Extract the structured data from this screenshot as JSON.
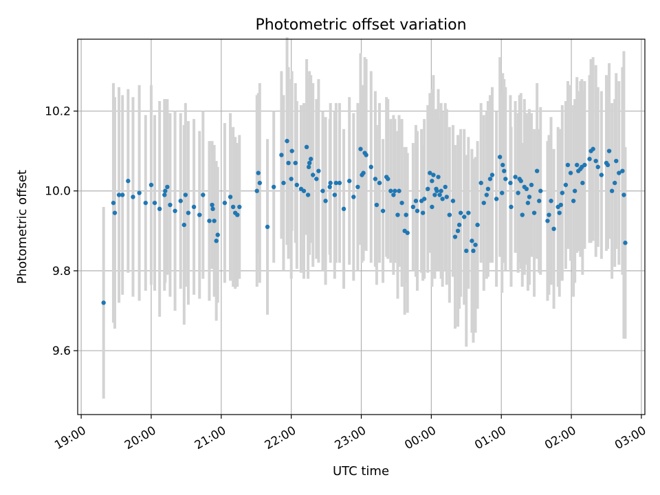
{
  "chart_data": {
    "type": "scatter",
    "title": "Photometric offset variation",
    "xlabel": "UTC time",
    "ylabel": "Photometric offset",
    "x_unit": "hours after 19:00 UTC",
    "xlim": [
      -0.05,
      8.05
    ],
    "ylim": [
      9.44,
      10.38
    ],
    "x_ticks": [
      {
        "value": 0,
        "label": "19:00"
      },
      {
        "value": 1,
        "label": "20:00"
      },
      {
        "value": 2,
        "label": "21:00"
      },
      {
        "value": 3,
        "label": "22:00"
      },
      {
        "value": 4,
        "label": "23:00"
      },
      {
        "value": 5,
        "label": "00:00"
      },
      {
        "value": 6,
        "label": "01:00"
      },
      {
        "value": 7,
        "label": "02:00"
      },
      {
        "value": 8,
        "label": "03:00"
      }
    ],
    "y_ticks": [
      {
        "value": 9.6,
        "label": "9.6"
      },
      {
        "value": 9.8,
        "label": "9.8"
      },
      {
        "value": 10.0,
        "label": "10.0"
      },
      {
        "value": 10.2,
        "label": "10.2"
      }
    ],
    "grid": true,
    "colors": {
      "points": "#1f77b4",
      "errorbars": "#d3d3d3",
      "grid": "#b0b0b0"
    },
    "series": [
      {
        "points": [
          [
            0.32,
            9.72,
            0.24
          ],
          [
            0.46,
            9.97,
            0.3
          ],
          [
            0.48,
            9.945,
            0.29
          ],
          [
            0.54,
            9.99,
            0.27
          ],
          [
            0.67,
            10.025,
            0.23
          ],
          [
            0.83,
            9.995,
            0.27
          ],
          [
            1.0,
            10.015,
            0.25
          ],
          [
            1.12,
            9.955,
            0.27
          ],
          [
            1.19,
            9.99,
            0.24
          ],
          [
            1.2,
            10.0,
            0.23
          ],
          [
            1.23,
            10.01,
            0.22
          ],
          [
            1.34,
            9.95,
            0.25
          ],
          [
            1.47,
            9.915,
            0.25
          ],
          [
            1.49,
            9.99,
            0.23
          ],
          [
            1.53,
            9.945,
            0.23
          ],
          [
            1.69,
            9.94,
            0.21
          ],
          [
            1.83,
            9.925,
            0.2
          ],
          [
            1.87,
            9.965,
            0.16
          ],
          [
            1.88,
            9.955,
            0.14
          ],
          [
            1.9,
            9.925,
            0.19
          ],
          [
            1.93,
            9.875,
            0.2
          ],
          [
            1.95,
            9.89,
            0.17
          ],
          [
            2.17,
            9.96,
            0.2
          ],
          [
            2.2,
            9.945,
            0.19
          ],
          [
            2.23,
            9.94,
            0.18
          ],
          [
            2.26,
            9.96,
            0.18
          ],
          [
            2.51,
            10.0,
            0.24
          ],
          [
            2.53,
            10.045,
            0.2
          ],
          [
            2.55,
            10.02,
            0.25
          ],
          [
            2.66,
            9.91,
            0.22
          ],
          [
            2.75,
            10.01,
            0.19
          ],
          [
            2.86,
            10.09,
            0.21
          ],
          [
            2.94,
            10.125,
            0.26
          ],
          [
            3.01,
            10.1,
            0.2
          ],
          [
            3.06,
            10.07,
            0.2
          ],
          [
            3.08,
            10.015,
            0.21
          ],
          [
            3.14,
            10.005,
            0.21
          ],
          [
            3.22,
            10.11,
            0.22
          ],
          [
            3.25,
            10.06,
            0.22
          ],
          [
            3.26,
            10.07,
            0.23
          ],
          [
            3.28,
            10.08,
            0.21
          ],
          [
            3.31,
            10.04,
            0.23
          ],
          [
            3.24,
            9.99,
            0.21
          ],
          [
            3.55,
            10.01,
            0.17
          ],
          [
            3.56,
            10.02,
            0.2
          ],
          [
            3.62,
            9.99,
            0.21
          ],
          [
            3.64,
            10.02,
            0.2
          ],
          [
            3.75,
            9.955,
            0.2
          ],
          [
            3.83,
            10.025,
            0.21
          ],
          [
            3.95,
            10.01,
            0.21
          ],
          [
            3.99,
            10.105,
            0.24
          ],
          [
            4.01,
            10.04,
            0.22
          ],
          [
            4.03,
            10.045,
            0.22
          ],
          [
            4.05,
            10.095,
            0.24
          ],
          [
            4.07,
            10.09,
            0.24
          ],
          [
            4.14,
            10.06,
            0.24
          ],
          [
            4.26,
            10.02,
            0.2
          ],
          [
            4.31,
            9.95,
            0.18
          ],
          [
            4.36,
            10.035,
            0.2
          ],
          [
            4.38,
            10.03,
            0.2
          ],
          [
            4.42,
            10.0,
            0.18
          ],
          [
            4.52,
            9.94,
            0.21
          ],
          [
            4.54,
            10.0,
            0.19
          ],
          [
            4.58,
            9.97,
            0.21
          ],
          [
            4.62,
            9.9,
            0.21
          ],
          [
            4.64,
            9.94,
            0.17
          ],
          [
            4.66,
            9.895,
            0.2
          ],
          [
            4.74,
            9.96,
            0.16
          ],
          [
            4.78,
            9.975,
            0.19
          ],
          [
            4.8,
            9.95,
            0.2
          ],
          [
            4.86,
            9.975,
            0.18
          ],
          [
            4.88,
            9.945,
            0.17
          ],
          [
            4.98,
            10.045,
            0.2
          ],
          [
            5.01,
            10.025,
            0.23
          ],
          [
            5.03,
            10.04,
            0.25
          ],
          [
            5.05,
            9.99,
            0.21
          ],
          [
            5.07,
            10.005,
            0.2
          ],
          [
            5.08,
            10.0,
            0.2
          ],
          [
            5.1,
            10.035,
            0.22
          ],
          [
            5.12,
            9.99,
            0.19
          ],
          [
            5.14,
            10.0,
            0.22
          ],
          [
            5.16,
            9.98,
            0.22
          ],
          [
            5.2,
            10.01,
            0.21
          ],
          [
            5.22,
            9.985,
            0.22
          ],
          [
            5.26,
            9.94,
            0.22
          ],
          [
            5.31,
            9.975,
            0.19
          ],
          [
            5.34,
            9.885,
            0.23
          ],
          [
            5.38,
            9.9,
            0.24
          ],
          [
            5.4,
            9.915,
            0.21
          ],
          [
            5.42,
            9.945,
            0.21
          ],
          [
            5.47,
            9.935,
            0.22
          ],
          [
            5.5,
            9.85,
            0.24
          ],
          [
            5.53,
            9.945,
            0.19
          ],
          [
            5.58,
            9.875,
            0.23
          ],
          [
            5.6,
            9.85,
            0.23
          ],
          [
            5.63,
            9.865,
            0.22
          ],
          [
            5.66,
            9.915,
            0.21
          ],
          [
            5.75,
            9.97,
            0.22
          ],
          [
            5.79,
            9.99,
            0.21
          ],
          [
            5.84,
            10.03,
            0.21
          ],
          [
            5.87,
            10.04,
            0.22
          ],
          [
            5.98,
            10.085,
            0.25
          ],
          [
            6.02,
            10.065,
            0.23
          ],
          [
            6.04,
            10.05,
            0.23
          ],
          [
            6.06,
            10.03,
            0.23
          ],
          [
            6.13,
            10.02,
            0.22
          ],
          [
            6.2,
            10.035,
            0.19
          ],
          [
            6.24,
            9.995,
            0.2
          ],
          [
            6.26,
            10.03,
            0.21
          ],
          [
            6.28,
            10.025,
            0.22
          ],
          [
            6.3,
            9.94,
            0.18
          ],
          [
            6.33,
            10.01,
            0.22
          ],
          [
            6.36,
            10.005,
            0.19
          ],
          [
            6.38,
            9.97,
            0.22
          ],
          [
            6.4,
            9.985,
            0.22
          ],
          [
            6.43,
            10.015,
            0.18
          ],
          [
            6.47,
            9.945,
            0.21
          ],
          [
            6.51,
            10.05,
            0.22
          ],
          [
            6.54,
            9.975,
            0.18
          ],
          [
            6.56,
            10.0,
            0.21
          ],
          [
            6.66,
            9.925,
            0.2
          ],
          [
            6.68,
            9.94,
            0.2
          ],
          [
            6.71,
            9.975,
            0.21
          ],
          [
            6.75,
            9.905,
            0.2
          ],
          [
            6.81,
            9.96,
            0.2
          ],
          [
            6.83,
            9.945,
            0.21
          ],
          [
            6.85,
            9.965,
            0.19
          ],
          [
            6.87,
            9.995,
            0.22
          ],
          [
            6.92,
            10.015,
            0.21
          ],
          [
            6.95,
            10.065,
            0.21
          ],
          [
            7.03,
            9.975,
            0.24
          ],
          [
            7.08,
            10.065,
            0.22
          ],
          [
            7.1,
            10.05,
            0.2
          ],
          [
            7.13,
            10.055,
            0.22
          ],
          [
            7.15,
            10.06,
            0.22
          ],
          [
            7.19,
            10.065,
            0.21
          ],
          [
            7.26,
            10.08,
            0.21
          ],
          [
            7.28,
            10.1,
            0.23
          ],
          [
            7.31,
            10.105,
            0.23
          ],
          [
            7.35,
            10.075,
            0.24
          ],
          [
            7.38,
            10.06,
            0.2
          ],
          [
            7.43,
            10.04,
            0.21
          ],
          [
            7.5,
            10.07,
            0.22
          ],
          [
            7.52,
            10.065,
            0.21
          ],
          [
            7.54,
            10.1,
            0.22
          ],
          [
            7.64,
            10.075,
            0.22
          ],
          [
            7.68,
            10.045,
            0.23
          ],
          [
            7.73,
            10.05,
            0.26
          ],
          [
            7.75,
            9.99,
            0.36
          ],
          [
            7.77,
            9.87,
            0.24
          ],
          [
            7.58,
            10.0,
            0.22
          ],
          [
            7.62,
            10.02,
            0.21
          ],
          [
            7.16,
            10.02,
            0.23
          ],
          [
            7.05,
            10.0,
            0.23
          ],
          [
            6.99,
            10.045,
            0.22
          ],
          [
            6.14,
            9.96,
            0.2
          ],
          [
            6.01,
            9.995,
            0.25
          ],
          [
            5.71,
            10.02,
            0.2
          ],
          [
            5.81,
            10.005,
            0.22
          ],
          [
            5.93,
            9.98,
            0.22
          ],
          [
            5.01,
            9.96,
            0.2
          ],
          [
            4.95,
            10.005,
            0.21
          ],
          [
            4.9,
            9.98,
            0.2
          ],
          [
            4.46,
            9.99,
            0.2
          ],
          [
            4.48,
            10.0,
            0.18
          ],
          [
            4.2,
            10.03,
            0.22
          ],
          [
            4.22,
            9.965,
            0.2
          ],
          [
            3.89,
            9.985,
            0.21
          ],
          [
            3.69,
            10.02,
            0.2
          ],
          [
            3.45,
            10.0,
            0.2
          ],
          [
            3.39,
            10.05,
            0.23
          ],
          [
            3.0,
            10.03,
            0.25
          ],
          [
            2.89,
            10.02,
            0.22
          ],
          [
            2.96,
            10.07,
            0.24
          ],
          [
            3.18,
            10.0,
            0.22
          ],
          [
            3.36,
            10.03,
            0.2
          ],
          [
            3.49,
            9.975,
            0.21
          ],
          [
            1.05,
            9.97,
            0.22
          ],
          [
            1.27,
            9.965,
            0.23
          ],
          [
            1.42,
            9.975,
            0.22
          ],
          [
            1.61,
            9.96,
            0.22
          ],
          [
            1.74,
            9.99,
            0.21
          ],
          [
            2.05,
            9.97,
            0.2
          ],
          [
            2.13,
            9.985,
            0.21
          ],
          [
            0.59,
            9.99,
            0.25
          ],
          [
            0.74,
            9.985,
            0.25
          ],
          [
            0.92,
            9.97,
            0.22
          ]
        ]
      }
    ]
  }
}
